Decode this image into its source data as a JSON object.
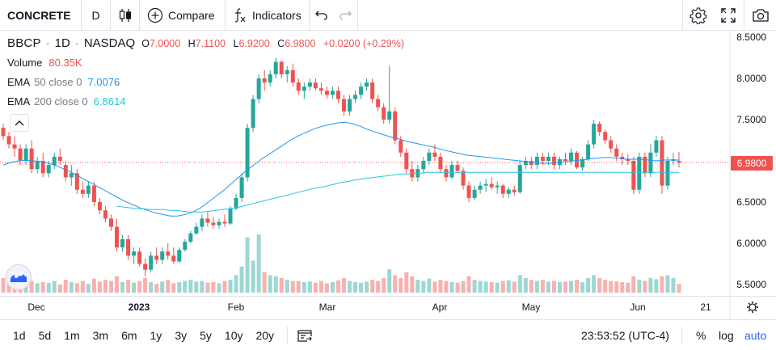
{
  "toolbar": {
    "symbol": "CONCRETE",
    "interval": "D",
    "compare_label": "Compare",
    "indicators_label": "Indicators"
  },
  "legend": {
    "ticker": "BBCP",
    "sep1": "·",
    "interval": "1D",
    "sep2": "·",
    "exchange": "NASDAQ",
    "o_label": "O",
    "o_value": "7.0000",
    "h_label": "H",
    "h_value": "7.1100",
    "l_label": "L",
    "l_value": "6.9200",
    "c_label": "C",
    "c_value": "6.9800",
    "change": "+0.0200 (+0.29%)",
    "volume_label": "Volume",
    "volume_value": "80.35K",
    "ema1_label": "EMA",
    "ema1_params": "50 close 0",
    "ema1_value": "7.0076",
    "ema2_label": "EMA",
    "ema2_params": "200 close 0",
    "ema2_value": "6.8614"
  },
  "colors": {
    "up": "#26a69a",
    "down": "#ef5350",
    "ema50": "#2196f3",
    "ema200": "#26c6da",
    "accent": "#2962ff"
  },
  "price_scale": {
    "ticks": [
      "8.5000",
      "8.0000",
      "7.5000",
      "7.0000",
      "6.5000",
      "6.0000",
      "5.5000"
    ],
    "current": "6.9800"
  },
  "time_axis": {
    "labels": [
      "Dec",
      "2023",
      "Feb",
      "Mar",
      "Apr",
      "May",
      "Jun",
      "21"
    ]
  },
  "bottom": {
    "ranges": [
      "1d",
      "5d",
      "1m",
      "3m",
      "6m",
      "1y",
      "3y",
      "5y",
      "10y",
      "20y"
    ],
    "clock": "23:53:52 (UTC-4)",
    "percent": "%",
    "log": "log",
    "auto": "auto"
  },
  "icons": [
    "candles-icon",
    "plus-circle-icon",
    "fx-icon",
    "undo-icon",
    "redo-icon",
    "gear-icon",
    "fullscreen-icon",
    "camera-icon",
    "chevron-up-icon",
    "calendar-range-icon",
    "tradingview-logo-icon"
  ],
  "chart_data": {
    "type": "candlestick",
    "ylim": [
      5.4,
      8.55
    ],
    "x_range": [
      "2022-11-22",
      "2023-06-23"
    ],
    "candles": [
      [
        7.4,
        7.45,
        7.25,
        7.3
      ],
      [
        7.3,
        7.35,
        7.15,
        7.2
      ],
      [
        7.2,
        7.3,
        7.05,
        7.15
      ],
      [
        7.15,
        7.2,
        6.95,
        7.0
      ],
      [
        7.0,
        7.2,
        6.95,
        7.15
      ],
      [
        7.15,
        7.25,
        6.85,
        6.9
      ],
      [
        6.9,
        7.05,
        6.85,
        7.0
      ],
      [
        7.0,
        7.1,
        6.8,
        6.85
      ],
      [
        6.85,
        7.0,
        6.8,
        6.95
      ],
      [
        6.95,
        7.1,
        6.9,
        7.05
      ],
      [
        7.05,
        7.15,
        6.95,
        7.0
      ],
      [
        6.95,
        7.0,
        6.75,
        6.8
      ],
      [
        6.8,
        6.95,
        6.7,
        6.85
      ],
      [
        6.85,
        6.9,
        6.6,
        6.65
      ],
      [
        6.65,
        6.75,
        6.55,
        6.6
      ],
      [
        6.6,
        6.75,
        6.55,
        6.7
      ],
      [
        6.7,
        6.75,
        6.45,
        6.5
      ],
      [
        6.5,
        6.55,
        6.35,
        6.4
      ],
      [
        6.4,
        6.45,
        6.25,
        6.3
      ],
      [
        6.3,
        6.35,
        6.15,
        6.2
      ],
      [
        6.2,
        6.3,
        5.9,
        5.95
      ],
      [
        5.95,
        6.1,
        5.9,
        6.05
      ],
      [
        6.05,
        6.1,
        5.8,
        5.85
      ],
      [
        5.85,
        5.95,
        5.75,
        5.9
      ],
      [
        5.9,
        5.95,
        5.72,
        5.75
      ],
      [
        5.75,
        5.82,
        5.6,
        5.68
      ],
      [
        5.68,
        5.9,
        5.65,
        5.85
      ],
      [
        5.85,
        5.95,
        5.75,
        5.8
      ],
      [
        5.8,
        5.95,
        5.75,
        5.9
      ],
      [
        5.9,
        6.0,
        5.8,
        5.85
      ],
      [
        5.85,
        5.95,
        5.75,
        5.78
      ],
      [
        5.78,
        5.95,
        5.76,
        5.92
      ],
      [
        5.92,
        6.05,
        5.9,
        6.02
      ],
      [
        6.02,
        6.15,
        6.0,
        6.12
      ],
      [
        6.12,
        6.25,
        6.1,
        6.2
      ],
      [
        6.2,
        6.35,
        6.15,
        6.3
      ],
      [
        6.3,
        6.38,
        6.2,
        6.25
      ],
      [
        6.25,
        6.32,
        6.18,
        6.22
      ],
      [
        6.22,
        6.3,
        6.18,
        6.26
      ],
      [
        6.26,
        6.35,
        6.2,
        6.24
      ],
      [
        6.24,
        6.45,
        6.22,
        6.42
      ],
      [
        6.42,
        6.6,
        6.4,
        6.55
      ],
      [
        6.55,
        6.85,
        6.5,
        6.8
      ],
      [
        6.8,
        7.45,
        6.75,
        7.4
      ],
      [
        7.4,
        7.8,
        7.35,
        7.75
      ],
      [
        7.75,
        8.05,
        7.7,
        8.0
      ],
      [
        8.0,
        8.1,
        7.85,
        7.95
      ],
      [
        7.95,
        8.1,
        7.9,
        8.05
      ],
      [
        8.05,
        8.25,
        8.0,
        8.2
      ],
      [
        8.2,
        8.22,
        8.0,
        8.05
      ],
      [
        8.05,
        8.15,
        7.95,
        8.1
      ],
      [
        8.1,
        8.18,
        7.9,
        7.95
      ],
      [
        7.95,
        8.0,
        7.8,
        7.85
      ],
      [
        7.85,
        7.95,
        7.75,
        7.9
      ],
      [
        7.9,
        8.0,
        7.85,
        7.95
      ],
      [
        7.95,
        8.0,
        7.85,
        7.88
      ],
      [
        7.88,
        7.95,
        7.8,
        7.85
      ],
      [
        7.85,
        7.9,
        7.75,
        7.8
      ],
      [
        7.8,
        7.9,
        7.75,
        7.85
      ],
      [
        7.85,
        7.9,
        7.7,
        7.75
      ],
      [
        7.75,
        7.8,
        7.55,
        7.6
      ],
      [
        7.6,
        7.8,
        7.55,
        7.75
      ],
      [
        7.75,
        7.85,
        7.7,
        7.8
      ],
      [
        7.8,
        7.95,
        7.75,
        7.9
      ],
      [
        7.9,
        8.0,
        7.85,
        7.95
      ],
      [
        7.95,
        8.0,
        7.7,
        7.75
      ],
      [
        7.75,
        7.8,
        7.6,
        7.65
      ],
      [
        7.65,
        7.7,
        7.45,
        7.5
      ],
      [
        7.5,
        8.15,
        7.45,
        7.6
      ],
      [
        7.6,
        7.65,
        7.2,
        7.25
      ],
      [
        7.25,
        7.3,
        7.05,
        7.1
      ],
      [
        7.1,
        7.15,
        6.85,
        6.9
      ],
      [
        6.9,
        7.0,
        6.75,
        6.8
      ],
      [
        6.8,
        6.95,
        6.75,
        6.9
      ],
      [
        6.9,
        7.05,
        6.85,
        7.0
      ],
      [
        7.0,
        7.15,
        6.95,
        7.1
      ],
      [
        7.1,
        7.2,
        7.0,
        7.05
      ],
      [
        7.05,
        7.1,
        6.85,
        6.9
      ],
      [
        6.9,
        6.95,
        6.75,
        6.8
      ],
      [
        6.8,
        7.0,
        6.78,
        6.95
      ],
      [
        6.95,
        7.0,
        6.85,
        6.88
      ],
      [
        6.88,
        6.92,
        6.65,
        6.7
      ],
      [
        6.7,
        6.75,
        6.5,
        6.55
      ],
      [
        6.55,
        6.7,
        6.52,
        6.65
      ],
      [
        6.65,
        6.75,
        6.6,
        6.7
      ],
      [
        6.7,
        6.78,
        6.62,
        6.72
      ],
      [
        6.72,
        6.8,
        6.65,
        6.68
      ],
      [
        6.68,
        6.75,
        6.6,
        6.7
      ],
      [
        6.7,
        6.72,
        6.55,
        6.6
      ],
      [
        6.6,
        6.68,
        6.55,
        6.65
      ],
      [
        6.65,
        6.7,
        6.58,
        6.62
      ],
      [
        6.62,
        7.0,
        6.6,
        6.95
      ],
      [
        6.95,
        7.05,
        6.9,
        7.0
      ],
      [
        7.0,
        7.05,
        6.9,
        6.95
      ],
      [
        6.95,
        7.1,
        6.9,
        7.05
      ],
      [
        7.05,
        7.1,
        6.95,
        7.0
      ],
      [
        7.0,
        7.1,
        6.95,
        7.05
      ],
      [
        7.05,
        7.1,
        6.9,
        6.95
      ],
      [
        6.95,
        7.05,
        6.9,
        7.02
      ],
      [
        7.02,
        7.1,
        6.95,
        7.0
      ],
      [
        7.0,
        7.15,
        6.95,
        7.1
      ],
      [
        7.1,
        7.12,
        6.9,
        6.92
      ],
      [
        6.92,
        7.05,
        6.88,
        7.02
      ],
      [
        7.02,
        7.25,
        7.0,
        7.2
      ],
      [
        7.2,
        7.5,
        7.15,
        7.45
      ],
      [
        7.45,
        7.48,
        7.3,
        7.35
      ],
      [
        7.35,
        7.38,
        7.2,
        7.25
      ],
      [
        7.25,
        7.3,
        7.1,
        7.15
      ],
      [
        7.15,
        7.2,
        7.0,
        7.05
      ],
      [
        7.05,
        7.1,
        6.95,
        7.02
      ],
      [
        7.02,
        7.08,
        6.95,
        7.0
      ],
      [
        7.0,
        7.05,
        6.6,
        6.65
      ],
      [
        6.65,
        7.1,
        6.6,
        7.05
      ],
      [
        7.05,
        7.1,
        6.8,
        6.85
      ],
      [
        6.85,
        7.2,
        6.8,
        7.1
      ],
      [
        7.1,
        7.3,
        7.05,
        7.25
      ],
      [
        7.25,
        7.3,
        6.6,
        6.7
      ],
      [
        6.7,
        7.05,
        6.65,
        7.0
      ],
      [
        7.0,
        7.1,
        6.95,
        7.02
      ],
      [
        7.0,
        7.11,
        6.92,
        6.98
      ]
    ],
    "volume": [
      0.25,
      0.2,
      0.18,
      0.22,
      0.15,
      0.2,
      0.16,
      0.18,
      0.17,
      0.2,
      0.14,
      0.22,
      0.18,
      0.16,
      0.2,
      0.15,
      0.24,
      0.19,
      0.22,
      0.2,
      0.28,
      0.18,
      0.22,
      0.17,
      0.2,
      0.25,
      0.18,
      0.15,
      0.19,
      0.22,
      0.16,
      0.18,
      0.2,
      0.22,
      0.19,
      0.2,
      0.17,
      0.18,
      0.16,
      0.2,
      0.22,
      0.3,
      0.45,
      0.95,
      0.55,
      1.0,
      0.35,
      0.3,
      0.28,
      0.25,
      0.22,
      0.2,
      0.2,
      0.18,
      0.19,
      0.17,
      0.2,
      0.16,
      0.18,
      0.21,
      0.25,
      0.2,
      0.18,
      0.17,
      0.19,
      0.22,
      0.2,
      0.25,
      0.4,
      0.3,
      0.25,
      0.35,
      0.28,
      0.22,
      0.2,
      0.24,
      0.19,
      0.22,
      0.2,
      0.18,
      0.17,
      0.2,
      0.28,
      0.22,
      0.2,
      0.19,
      0.18,
      0.17,
      0.2,
      0.21,
      0.19,
      0.3,
      0.25,
      0.22,
      0.2,
      0.22,
      0.19,
      0.2,
      0.18,
      0.19,
      0.2,
      0.22,
      0.18,
      0.25,
      0.3,
      0.25,
      0.22,
      0.2,
      0.19,
      0.18,
      0.17,
      0.28,
      0.22,
      0.2,
      0.25,
      0.23,
      0.28,
      0.3,
      0.25,
      0.15
    ],
    "ema50": [
      6.95,
      6.98,
      7.0,
      7.01,
      7.0,
      6.99,
      6.97,
      6.94,
      6.9,
      6.86,
      6.81,
      6.76,
      6.71,
      6.66,
      6.61,
      6.56,
      6.51,
      6.47,
      6.43,
      6.4,
      6.37,
      6.35,
      6.33,
      6.33,
      6.35,
      6.38,
      6.43,
      6.5,
      6.57,
      6.64,
      6.72,
      6.8,
      6.88,
      6.95,
      7.02,
      7.08,
      7.14,
      7.2,
      7.26,
      7.31,
      7.35,
      7.39,
      7.42,
      7.44,
      7.46,
      7.47,
      7.45,
      7.42,
      7.38,
      7.35,
      7.32,
      7.29,
      7.27,
      7.24,
      7.22,
      7.2,
      7.18,
      7.16,
      7.13,
      7.11,
      7.09,
      7.07,
      7.06,
      7.05,
      7.04,
      7.03,
      7.02,
      7.01,
      7.0,
      6.99,
      6.98,
      6.97,
      6.97,
      6.98,
      6.99,
      7.0,
      7.01,
      7.02,
      7.03,
      7.04,
      7.04,
      7.03,
      7.02,
      7.02,
      7.02,
      7.01,
      7.0,
      7.01,
      7.01,
      7.01
    ],
    "ema200": [
      6.45,
      6.44,
      6.43,
      6.42,
      6.42,
      6.41,
      6.41,
      6.41,
      6.4,
      6.4,
      6.39,
      6.38,
      6.38,
      6.38,
      6.39,
      6.4,
      6.41,
      6.42,
      6.43,
      6.45,
      6.47,
      6.49,
      6.51,
      6.53,
      6.55,
      6.57,
      6.59,
      6.61,
      6.63,
      6.65,
      6.67,
      6.68,
      6.7,
      6.72,
      6.74,
      6.75,
      6.77,
      6.78,
      6.79,
      6.8,
      6.81,
      6.82,
      6.83,
      6.84,
      6.84,
      6.85,
      6.85,
      6.86,
      6.86,
      6.86,
      6.86,
      6.86,
      6.86,
      6.86,
      6.86,
      6.86,
      6.86,
      6.86,
      6.86,
      6.86,
      6.86,
      6.86,
      6.86,
      6.86,
      6.86,
      6.86,
      6.86,
      6.86,
      6.86,
      6.86,
      6.86,
      6.86,
      6.86,
      6.86,
      6.86,
      6.86,
      6.86,
      6.86,
      6.86,
      6.86,
      6.86,
      6.86,
      6.86,
      6.86,
      6.86,
      6.86
    ]
  }
}
